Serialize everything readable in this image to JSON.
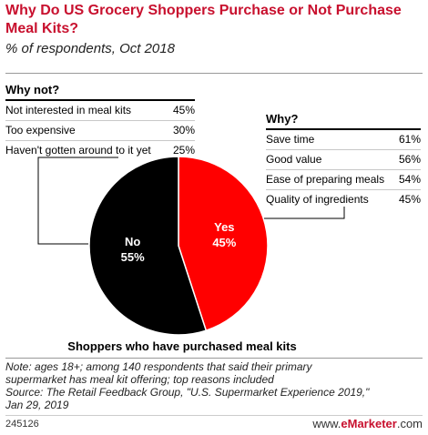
{
  "title": "Why Do US Grocery Shoppers Purchase or Not Purchase Meal Kits?",
  "subtitle": "% of respondents, Oct 2018",
  "why_not": {
    "heading": "Why not?",
    "rows": [
      {
        "label": "Not interested in meal kits",
        "value": "45%"
      },
      {
        "label": "Too expensive",
        "value": "30%"
      },
      {
        "label": "Haven't gotten around to it yet",
        "value": "25%"
      }
    ]
  },
  "why": {
    "heading": "Why?",
    "rows": [
      {
        "label": "Save time",
        "value": "61%"
      },
      {
        "label": "Good value",
        "value": "56%"
      },
      {
        "label": "Ease of preparing meals",
        "value": "54%"
      },
      {
        "label": "Quality of ingredients",
        "value": "45%"
      }
    ]
  },
  "chart_data": {
    "type": "pie",
    "title": "Shoppers who have purchased meal kits",
    "slices": [
      {
        "label": "Yes",
        "value": 45,
        "display": "45%",
        "color": "#ff0000"
      },
      {
        "label": "No",
        "value": 55,
        "display": "55%",
        "color": "#000000"
      }
    ]
  },
  "note": "Note: ages 18+; among 140 respondents that said their primary\nsupermarket has meal kit offering; top reasons included",
  "source": "Source: The Retail Feedback Group, \"U.S. Supermarket Experience 2019,\"\nJan 29, 2019",
  "chart_id": "245126",
  "brand": {
    "prefix": "www.",
    "name": "eMarketer",
    "suffix": ".com"
  }
}
